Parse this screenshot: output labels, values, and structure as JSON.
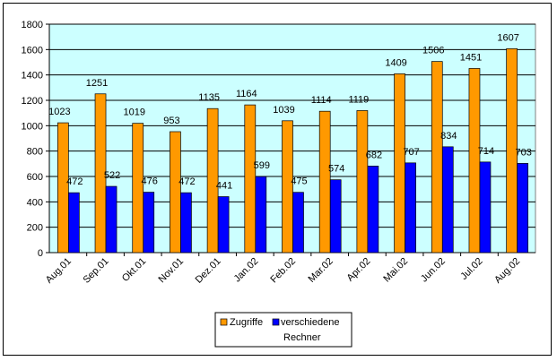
{
  "chart_data": {
    "type": "bar",
    "categories": [
      "Aug.01",
      "Sep.01",
      "Okt.01",
      "Nov.01",
      "Dez.01",
      "Jan.02",
      "Feb.02",
      "Mar.02",
      "Apr.02",
      "Mai.02",
      "Jun.02",
      "Jul.02",
      "Aug.02"
    ],
    "series": [
      {
        "name": "Zugriffe",
        "values": [
          1023,
          1251,
          1019,
          953,
          1135,
          1164,
          1039,
          1114,
          1119,
          1409,
          1506,
          1451,
          1607
        ],
        "color": "#ff9900"
      },
      {
        "name": "verschiedene Rechner",
        "legend_lines": [
          "verschiedene",
          "Rechner"
        ],
        "values": [
          472,
          522,
          476,
          472,
          441,
          599,
          475,
          574,
          682,
          707,
          834,
          714,
          703
        ],
        "color": "#0000ff"
      }
    ],
    "ylim": [
      0,
      1800
    ],
    "yticks": [
      "0",
      "200",
      "400",
      "600",
      "800",
      "1000",
      "1200",
      "1400",
      "1600",
      "1800"
    ],
    "plot_background": "#ccffff",
    "grid": true,
    "legend": "bottom",
    "title": "",
    "xlabel": "",
    "ylabel": ""
  }
}
